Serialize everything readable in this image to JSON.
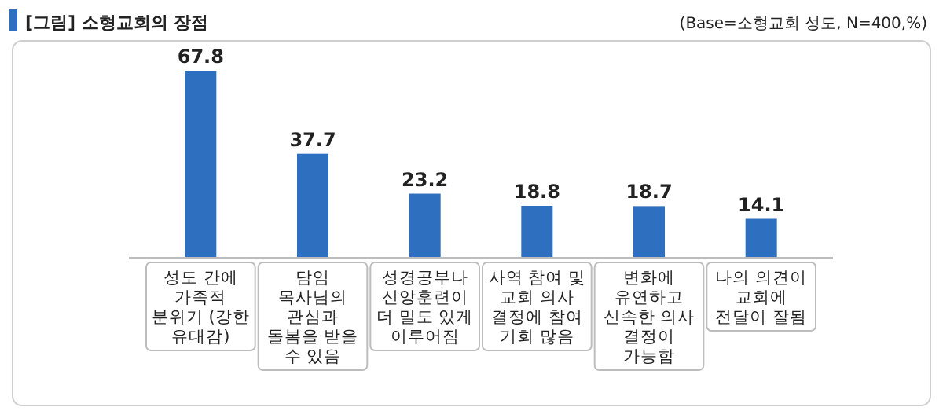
{
  "chart_data": {
    "type": "bar",
    "title": "[그림] 소형교회의 장점",
    "subtitle": "(Base=소형교회 성도, N=400,%)",
    "categories": [
      "성도 간에 가족적 분위기 (강한 유대감)",
      "담임 목사님의 관심과 돌봄을 받을 수 있음",
      "성경공부나 신앙훈련이 더 밀도 있게 이루어짐",
      "사역 참여 및 교회 의사 결정에 참여 기회 많음",
      "변화에 유연하고 신속한 의사 결정이 가능함",
      "나의 의견이 교회에 전달이 잘됨"
    ],
    "values": [
      67.8,
      37.7,
      23.2,
      18.8,
      18.7,
      14.1
    ],
    "color": "#2f6fbf",
    "data_labels": true
  }
}
